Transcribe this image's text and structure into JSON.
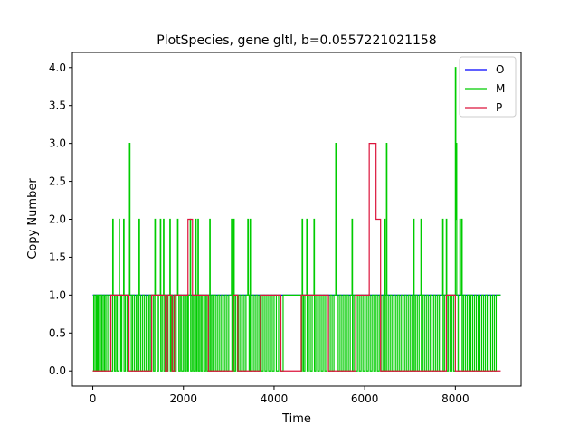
{
  "chart_data": {
    "type": "line",
    "title": "PlotSpecies, gene gltl, b=0.0557221021158",
    "xlabel": "Time",
    "ylabel": "Copy Number",
    "xlim": [
      -450,
      9450
    ],
    "ylim": [
      -0.2,
      4.2
    ],
    "x_ticks": [
      0,
      2000,
      4000,
      6000,
      8000
    ],
    "x_tick_labels": [
      "0",
      "2000",
      "4000",
      "6000",
      "8000"
    ],
    "y_ticks": [
      0.0,
      0.5,
      1.0,
      1.5,
      2.0,
      2.5,
      3.0,
      3.5,
      4.0
    ],
    "y_tick_labels": [
      "0.0",
      "0.5",
      "1.0",
      "1.5",
      "2.0",
      "2.5",
      "3.0",
      "3.5",
      "4.0"
    ],
    "grid": false,
    "legend_position": "top-right",
    "series": [
      {
        "name": "O",
        "color": "#0000ff",
        "step": true,
        "points": [
          [
            0,
            1
          ],
          [
            9000,
            1
          ]
        ]
      },
      {
        "name": "M",
        "color": "#00cc00",
        "step": true,
        "points": [
          [
            0,
            0
          ],
          [
            20,
            1
          ],
          [
            50,
            0
          ],
          [
            80,
            1
          ],
          [
            100,
            0
          ],
          [
            120,
            1
          ],
          [
            150,
            0
          ],
          [
            170,
            1
          ],
          [
            200,
            0
          ],
          [
            230,
            1
          ],
          [
            260,
            0
          ],
          [
            290,
            1
          ],
          [
            330,
            0
          ],
          [
            360,
            1
          ],
          [
            400,
            0
          ],
          [
            440,
            2
          ],
          [
            450,
            1
          ],
          [
            480,
            0
          ],
          [
            510,
            1
          ],
          [
            540,
            0
          ],
          [
            580,
            2
          ],
          [
            590,
            1
          ],
          [
            620,
            0
          ],
          [
            640,
            1
          ],
          [
            680,
            2
          ],
          [
            690,
            0
          ],
          [
            720,
            1
          ],
          [
            760,
            0
          ],
          [
            790,
            1
          ],
          [
            810,
            3
          ],
          [
            820,
            1
          ],
          [
            850,
            0
          ],
          [
            880,
            1
          ],
          [
            920,
            0
          ],
          [
            960,
            1
          ],
          [
            990,
            0
          ],
          [
            1020,
            2
          ],
          [
            1030,
            1
          ],
          [
            1060,
            0
          ],
          [
            1100,
            1
          ],
          [
            1140,
            0
          ],
          [
            1180,
            1
          ],
          [
            1200,
            0
          ],
          [
            1240,
            1
          ],
          [
            1270,
            0
          ],
          [
            1300,
            1
          ],
          [
            1340,
            0
          ],
          [
            1370,
            2
          ],
          [
            1380,
            1
          ],
          [
            1420,
            0
          ],
          [
            1450,
            1
          ],
          [
            1490,
            2
          ],
          [
            1500,
            0
          ],
          [
            1530,
            1
          ],
          [
            1560,
            2
          ],
          [
            1570,
            0
          ],
          [
            1600,
            1
          ],
          [
            1630,
            0
          ],
          [
            1660,
            1
          ],
          [
            1700,
            2
          ],
          [
            1710,
            0
          ],
          [
            1730,
            1
          ],
          [
            1760,
            0
          ],
          [
            1790,
            1
          ],
          [
            1810,
            0
          ],
          [
            1840,
            1
          ],
          [
            1870,
            2
          ],
          [
            1880,
            1
          ],
          [
            1900,
            0
          ],
          [
            1930,
            1
          ],
          [
            1960,
            0
          ],
          [
            2000,
            1
          ],
          [
            2030,
            0
          ],
          [
            2060,
            1
          ],
          [
            2090,
            0
          ],
          [
            2110,
            1
          ],
          [
            2150,
            2
          ],
          [
            2160,
            0
          ],
          [
            2190,
            1
          ],
          [
            2220,
            0
          ],
          [
            2250,
            1
          ],
          [
            2270,
            2
          ],
          [
            2280,
            0
          ],
          [
            2300,
            1
          ],
          [
            2320,
            2
          ],
          [
            2330,
            0
          ],
          [
            2360,
            1
          ],
          [
            2390,
            0
          ],
          [
            2420,
            1
          ],
          [
            2460,
            0
          ],
          [
            2490,
            1
          ],
          [
            2520,
            0
          ],
          [
            2560,
            1
          ],
          [
            2580,
            2
          ],
          [
            2590,
            0
          ],
          [
            2620,
            1
          ],
          [
            2650,
            0
          ],
          [
            2680,
            1
          ],
          [
            2720,
            0
          ],
          [
            2760,
            1
          ],
          [
            2800,
            0
          ],
          [
            2840,
            1
          ],
          [
            2880,
            0
          ],
          [
            2920,
            1
          ],
          [
            2960,
            0
          ],
          [
            3000,
            1
          ],
          [
            3060,
            2
          ],
          [
            3070,
            0
          ],
          [
            3090,
            1
          ],
          [
            3110,
            2
          ],
          [
            3120,
            0
          ],
          [
            3150,
            1
          ],
          [
            3190,
            0
          ],
          [
            3220,
            1
          ],
          [
            3260,
            0
          ],
          [
            3300,
            1
          ],
          [
            3340,
            0
          ],
          [
            3380,
            1
          ],
          [
            3420,
            2
          ],
          [
            3430,
            1
          ],
          [
            3450,
            0
          ],
          [
            3470,
            2
          ],
          [
            3480,
            0
          ],
          [
            3520,
            1
          ],
          [
            3560,
            0
          ],
          [
            3600,
            1
          ],
          [
            3640,
            0
          ],
          [
            3680,
            1
          ],
          [
            3720,
            0
          ],
          [
            3760,
            1
          ],
          [
            3800,
            0
          ],
          [
            3840,
            1
          ],
          [
            3880,
            0
          ],
          [
            3920,
            1
          ],
          [
            3960,
            0
          ],
          [
            4000,
            1
          ],
          [
            4050,
            0
          ],
          [
            4100,
            1
          ],
          [
            4150,
            0
          ],
          [
            4200,
            1
          ],
          [
            4600,
            0
          ],
          [
            4620,
            2
          ],
          [
            4630,
            1
          ],
          [
            4650,
            0
          ],
          [
            4680,
            1
          ],
          [
            4720,
            2
          ],
          [
            4730,
            0
          ],
          [
            4760,
            1
          ],
          [
            4800,
            0
          ],
          [
            4840,
            1
          ],
          [
            4880,
            2
          ],
          [
            4890,
            0
          ],
          [
            4920,
            1
          ],
          [
            4960,
            0
          ],
          [
            5000,
            1
          ],
          [
            5040,
            0
          ],
          [
            5080,
            1
          ],
          [
            5120,
            0
          ],
          [
            5160,
            1
          ],
          [
            5200,
            0
          ],
          [
            5240,
            1
          ],
          [
            5280,
            0
          ],
          [
            5320,
            1
          ],
          [
            5360,
            3
          ],
          [
            5370,
            1
          ],
          [
            5400,
            0
          ],
          [
            5440,
            1
          ],
          [
            5480,
            0
          ],
          [
            5520,
            1
          ],
          [
            5560,
            0
          ],
          [
            5600,
            1
          ],
          [
            5640,
            0
          ],
          [
            5680,
            1
          ],
          [
            5720,
            2
          ],
          [
            5730,
            0
          ],
          [
            5760,
            1
          ],
          [
            5800,
            0
          ],
          [
            5840,
            1
          ],
          [
            5880,
            0
          ],
          [
            5920,
            1
          ],
          [
            5960,
            0
          ],
          [
            6000,
            1
          ],
          [
            6040,
            0
          ],
          [
            6080,
            1
          ],
          [
            6120,
            0
          ],
          [
            6160,
            1
          ],
          [
            6200,
            0
          ],
          [
            6240,
            1
          ],
          [
            6280,
            0
          ],
          [
            6320,
            1
          ],
          [
            6360,
            0
          ],
          [
            6400,
            1
          ],
          [
            6440,
            2
          ],
          [
            6450,
            0
          ],
          [
            6480,
            3
          ],
          [
            6490,
            1
          ],
          [
            6520,
            0
          ],
          [
            6560,
            1
          ],
          [
            6600,
            0
          ],
          [
            6640,
            1
          ],
          [
            6680,
            0
          ],
          [
            6720,
            1
          ],
          [
            6760,
            0
          ],
          [
            6800,
            1
          ],
          [
            6840,
            0
          ],
          [
            6880,
            1
          ],
          [
            6920,
            0
          ],
          [
            6960,
            1
          ],
          [
            7000,
            0
          ],
          [
            7040,
            1
          ],
          [
            7080,
            2
          ],
          [
            7090,
            0
          ],
          [
            7120,
            1
          ],
          [
            7160,
            0
          ],
          [
            7200,
            1
          ],
          [
            7240,
            2
          ],
          [
            7250,
            0
          ],
          [
            7280,
            1
          ],
          [
            7320,
            0
          ],
          [
            7360,
            1
          ],
          [
            7400,
            0
          ],
          [
            7440,
            1
          ],
          [
            7480,
            0
          ],
          [
            7520,
            1
          ],
          [
            7560,
            0
          ],
          [
            7600,
            1
          ],
          [
            7640,
            0
          ],
          [
            7680,
            1
          ],
          [
            7720,
            2
          ],
          [
            7730,
            0
          ],
          [
            7760,
            1
          ],
          [
            7800,
            2
          ],
          [
            7810,
            0
          ],
          [
            7840,
            1
          ],
          [
            7880,
            0
          ],
          [
            7920,
            1
          ],
          [
            7960,
            0
          ],
          [
            8000,
            4
          ],
          [
            8010,
            2
          ],
          [
            8020,
            3
          ],
          [
            8030,
            1
          ],
          [
            8060,
            0
          ],
          [
            8100,
            2
          ],
          [
            8110,
            1
          ],
          [
            8140,
            2
          ],
          [
            8150,
            0
          ],
          [
            8180,
            1
          ],
          [
            8220,
            0
          ],
          [
            8260,
            1
          ],
          [
            8300,
            0
          ],
          [
            8340,
            1
          ],
          [
            8380,
            0
          ],
          [
            8420,
            1
          ],
          [
            8460,
            0
          ],
          [
            8500,
            1
          ],
          [
            8540,
            0
          ],
          [
            8580,
            1
          ],
          [
            8620,
            0
          ],
          [
            8660,
            1
          ],
          [
            8700,
            0
          ],
          [
            8740,
            1
          ],
          [
            8780,
            0
          ],
          [
            8820,
            1
          ],
          [
            8860,
            0
          ],
          [
            8900,
            1
          ],
          [
            9000,
            1
          ]
        ]
      },
      {
        "name": "P",
        "color": "#dc143c",
        "step": true,
        "points": [
          [
            0,
            0
          ],
          [
            400,
            1
          ],
          [
            800,
            0
          ],
          [
            1300,
            1
          ],
          [
            1600,
            0
          ],
          [
            1650,
            1
          ],
          [
            1750,
            0
          ],
          [
            1800,
            1
          ],
          [
            2100,
            2
          ],
          [
            2200,
            1
          ],
          [
            2550,
            0
          ],
          [
            3100,
            1
          ],
          [
            3200,
            0
          ],
          [
            3700,
            1
          ],
          [
            4150,
            0
          ],
          [
            4600,
            1
          ],
          [
            5200,
            0
          ],
          [
            5800,
            1
          ],
          [
            6100,
            3
          ],
          [
            6250,
            2
          ],
          [
            6350,
            0
          ],
          [
            7800,
            1
          ],
          [
            8000,
            0
          ],
          [
            9000,
            0
          ]
        ]
      }
    ]
  }
}
